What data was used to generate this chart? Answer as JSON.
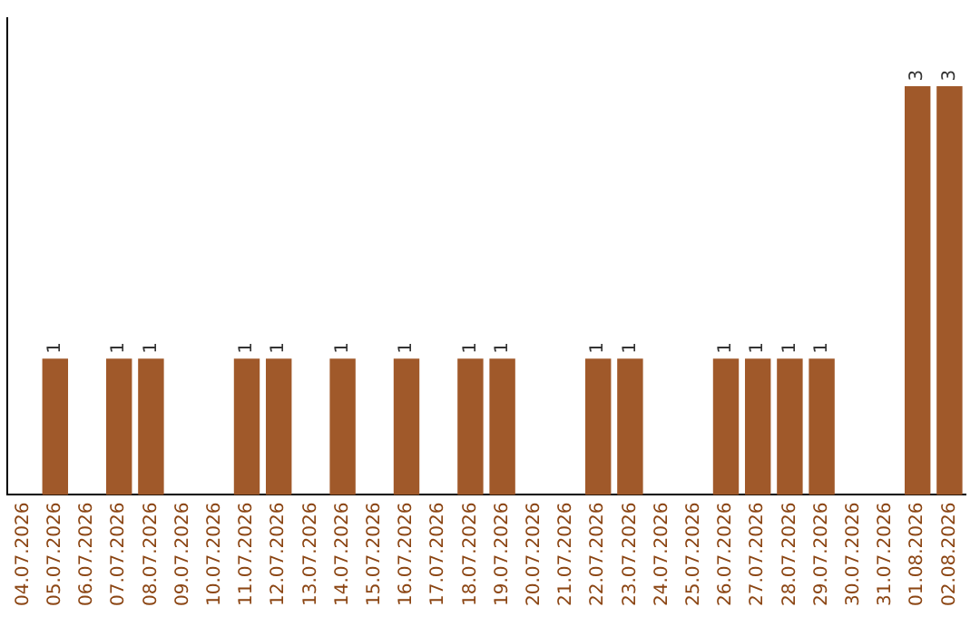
{
  "chart_data": {
    "type": "bar",
    "categories": [
      "04.07.2026",
      "05.07.2026",
      "06.07.2026",
      "07.07.2026",
      "08.07.2026",
      "09.07.2026",
      "10.07.2026",
      "11.07.2026",
      "12.07.2026",
      "13.07.2026",
      "14.07.2026",
      "15.07.2026",
      "16.07.2026",
      "17.07.2026",
      "18.07.2026",
      "19.07.2026",
      "20.07.2026",
      "21.07.2026",
      "22.07.2026",
      "23.07.2026",
      "24.07.2026",
      "25.07.2026",
      "26.07.2026",
      "27.07.2026",
      "28.07.2026",
      "29.07.2026",
      "30.07.2026",
      "31.07.2026",
      "01.08.2026",
      "02.08.2026"
    ],
    "values": [
      null,
      1,
      null,
      1,
      1,
      null,
      null,
      1,
      1,
      null,
      1,
      null,
      1,
      null,
      1,
      1,
      null,
      null,
      1,
      1,
      null,
      null,
      1,
      1,
      1,
      1,
      null,
      null,
      3,
      3
    ],
    "color": "#a0592a",
    "data_labels": true,
    "grid": false,
    "legend": false,
    "tick_labels": "x"
  }
}
